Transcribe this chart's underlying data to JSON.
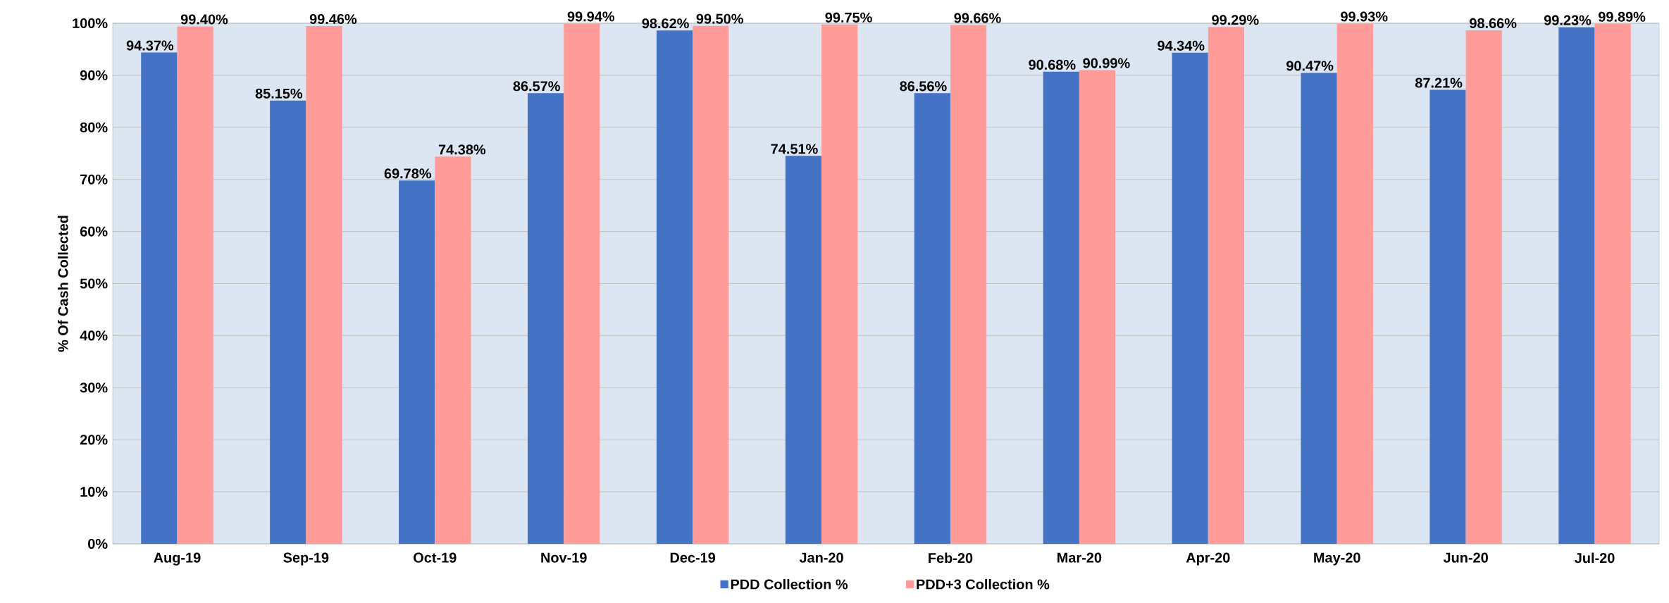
{
  "chart_data": {
    "type": "bar",
    "ylabel": "% Of Cash Collected",
    "categories": [
      "Aug-19",
      "Sep-19",
      "Oct-19",
      "Nov-19",
      "Dec-19",
      "Jan-20",
      "Feb-20",
      "Mar-20",
      "Apr-20",
      "May-20",
      "Jun-20",
      "Jul-20"
    ],
    "series": [
      {
        "name": "PDD Collection %",
        "color": "#4472c4",
        "values": [
          94.37,
          85.15,
          69.78,
          86.57,
          98.62,
          74.51,
          86.56,
          90.68,
          94.34,
          90.47,
          87.21,
          99.23
        ],
        "value_labels": [
          "94.37%",
          "85.15%",
          "69.78%",
          "86.57%",
          "98.62%",
          "74.51%",
          "86.56%",
          "90.68%",
          "94.34%",
          "90.47%",
          "87.21%",
          "99.23%"
        ]
      },
      {
        "name": "PDD+3 Collection %",
        "color": "#ff9c99",
        "values": [
          99.4,
          99.46,
          74.38,
          99.94,
          99.5,
          99.75,
          99.66,
          90.99,
          99.29,
          99.93,
          98.66,
          99.89
        ],
        "value_labels": [
          "99.40%",
          "99.46%",
          "74.38%",
          "99.94%",
          "99.50%",
          "99.75%",
          "99.66%",
          "90.99%",
          "99.29%",
          "99.93%",
          "98.66%",
          "99.89%"
        ]
      }
    ],
    "ylim": [
      0,
      100
    ],
    "yticks": [
      {
        "value": 0,
        "label": "0%"
      },
      {
        "value": 10,
        "label": "10%"
      },
      {
        "value": 20,
        "label": "20%"
      },
      {
        "value": 30,
        "label": "30%"
      },
      {
        "value": 40,
        "label": "40%"
      },
      {
        "value": 50,
        "label": "50%"
      },
      {
        "value": 60,
        "label": "60%"
      },
      {
        "value": 70,
        "label": "70%"
      },
      {
        "value": 80,
        "label": "80%"
      },
      {
        "value": 90,
        "label": "90%"
      },
      {
        "value": 100,
        "label": "100%"
      }
    ],
    "grid": "y",
    "legend": "bottom"
  }
}
